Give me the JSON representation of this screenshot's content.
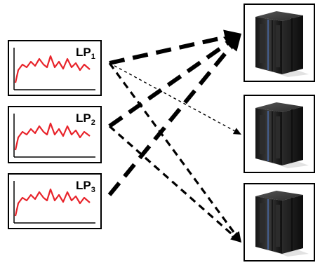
{
  "partitions": [
    {
      "id": "lp1",
      "label": "LP",
      "subscript": "1"
    },
    {
      "id": "lp2",
      "label": "LP",
      "subscript": "2"
    },
    {
      "id": "lp3",
      "label": "LP",
      "subscript": "3"
    }
  ],
  "servers": [
    {
      "id": "server-1"
    },
    {
      "id": "server-2"
    },
    {
      "id": "server-3"
    }
  ],
  "connections": [
    {
      "from": "lp1",
      "to": "server-1",
      "weight": "heavy"
    },
    {
      "from": "lp1",
      "to": "server-2",
      "weight": "light"
    },
    {
      "from": "lp1",
      "to": "server-3",
      "weight": "medium"
    },
    {
      "from": "lp2",
      "to": "server-1",
      "weight": "heavy"
    },
    {
      "from": "lp2",
      "to": "server-3",
      "weight": "medium"
    },
    {
      "from": "lp3",
      "to": "server-1",
      "weight": "heavy"
    }
  ],
  "colors": {
    "signal": "#e8232a",
    "arrow": "#000000",
    "frame": "#000000",
    "server_body": "#1d1d1d"
  },
  "icons": {
    "server": "mainframe-server-icon",
    "signal": "workload-line-chart"
  }
}
